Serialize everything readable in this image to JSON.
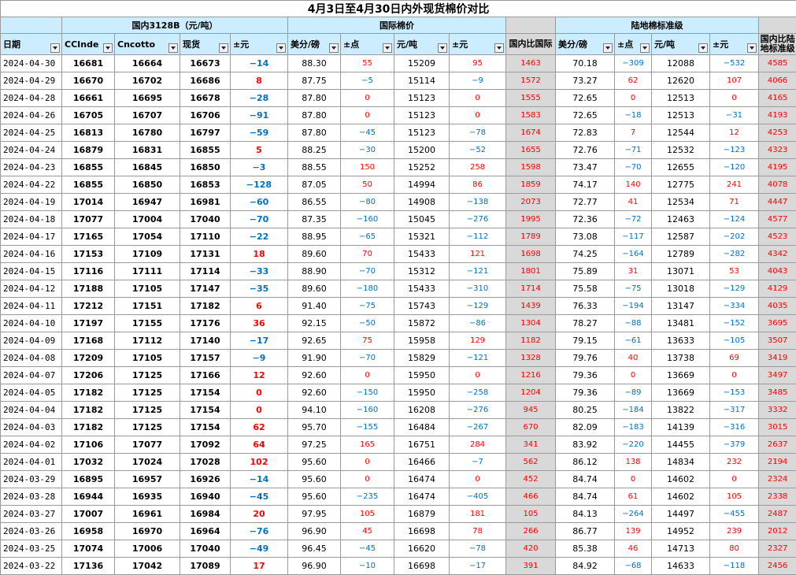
{
  "title": "4月3日至4月30日内外现货棉价对比",
  "groups": {
    "domestic": "国内3128B（元/吨）",
    "intl": "国际棉价",
    "local": "陆地棉标准级"
  },
  "headers": [
    "日期",
    "CCInde",
    "Cncotto",
    "现货",
    "±元",
    "美分/磅",
    "±点",
    "元/吨",
    "±元",
    "国内比国际",
    "美分/磅",
    "±点",
    "元/吨",
    "±元",
    "国内比陆地标准级"
  ],
  "colors": {
    "positive": "#ff0000",
    "negative": "#0070c0",
    "header_bg": "#ccecff",
    "gray_bg": "#d9d9d9"
  },
  "rows": [
    [
      "2024-04-30",
      "16681",
      "16664",
      "16673",
      "−14",
      "88.30",
      "55",
      "15209",
      "95",
      "1463",
      "70.18",
      "−309",
      "12088",
      "−532",
      "4585"
    ],
    [
      "2024-04-29",
      "16670",
      "16702",
      "16686",
      "8",
      "87.75",
      "−5",
      "15114",
      "−9",
      "1572",
      "73.27",
      "62",
      "12620",
      "107",
      "4066"
    ],
    [
      "2024-04-28",
      "16661",
      "16695",
      "16678",
      "−28",
      "87.80",
      "0",
      "15123",
      "0",
      "1555",
      "72.65",
      "0",
      "12513",
      "0",
      "4165"
    ],
    [
      "2024-04-26",
      "16705",
      "16707",
      "16706",
      "−91",
      "87.80",
      "0",
      "15123",
      "0",
      "1583",
      "72.65",
      "−18",
      "12513",
      "−31",
      "4193"
    ],
    [
      "2024-04-25",
      "16813",
      "16780",
      "16797",
      "−59",
      "87.80",
      "−45",
      "15123",
      "−78",
      "1674",
      "72.83",
      "7",
      "12544",
      "12",
      "4253"
    ],
    [
      "2024-04-24",
      "16879",
      "16831",
      "16855",
      "5",
      "88.25",
      "−30",
      "15200",
      "−52",
      "1655",
      "72.76",
      "−71",
      "12532",
      "−123",
      "4323"
    ],
    [
      "2024-04-23",
      "16855",
      "16845",
      "16850",
      "−3",
      "88.55",
      "150",
      "15252",
      "258",
      "1598",
      "73.47",
      "−70",
      "12655",
      "−120",
      "4195"
    ],
    [
      "2024-04-22",
      "16855",
      "16850",
      "16853",
      "−128",
      "87.05",
      "50",
      "14994",
      "86",
      "1859",
      "74.17",
      "140",
      "12775",
      "241",
      "4078"
    ],
    [
      "2024-04-19",
      "17014",
      "16947",
      "16981",
      "−60",
      "86.55",
      "−80",
      "14908",
      "−138",
      "2073",
      "72.77",
      "41",
      "12534",
      "71",
      "4447"
    ],
    [
      "2024-04-18",
      "17077",
      "17004",
      "17040",
      "−70",
      "87.35",
      "−160",
      "15045",
      "−276",
      "1995",
      "72.36",
      "−72",
      "12463",
      "−124",
      "4577"
    ],
    [
      "2024-04-17",
      "17165",
      "17054",
      "17110",
      "−22",
      "88.95",
      "−65",
      "15321",
      "−112",
      "1789",
      "73.08",
      "−117",
      "12587",
      "−202",
      "4523"
    ],
    [
      "2024-04-16",
      "17153",
      "17109",
      "17131",
      "18",
      "89.60",
      "70",
      "15433",
      "121",
      "1698",
      "74.25",
      "−164",
      "12789",
      "−282",
      "4342"
    ],
    [
      "2024-04-15",
      "17116",
      "17111",
      "17114",
      "−33",
      "88.90",
      "−70",
      "15312",
      "−121",
      "1801",
      "75.89",
      "31",
      "13071",
      "53",
      "4043"
    ],
    [
      "2024-04-12",
      "17188",
      "17105",
      "17147",
      "−35",
      "89.60",
      "−180",
      "15433",
      "−310",
      "1714",
      "75.58",
      "−75",
      "13018",
      "−129",
      "4129"
    ],
    [
      "2024-04-11",
      "17212",
      "17151",
      "17182",
      "6",
      "91.40",
      "−75",
      "15743",
      "−129",
      "1439",
      "76.33",
      "−194",
      "13147",
      "−334",
      "4035"
    ],
    [
      "2024-04-10",
      "17197",
      "17155",
      "17176",
      "36",
      "92.15",
      "−50",
      "15872",
      "−86",
      "1304",
      "78.27",
      "−88",
      "13481",
      "−152",
      "3695"
    ],
    [
      "2024-04-09",
      "17168",
      "17112",
      "17140",
      "−17",
      "92.65",
      "75",
      "15958",
      "129",
      "1182",
      "79.15",
      "−61",
      "13633",
      "−105",
      "3507"
    ],
    [
      "2024-04-08",
      "17209",
      "17105",
      "17157",
      "−9",
      "91.90",
      "−70",
      "15829",
      "−121",
      "1328",
      "79.76",
      "40",
      "13738",
      "69",
      "3419"
    ],
    [
      "2024-04-07",
      "17206",
      "17125",
      "17166",
      "12",
      "92.60",
      "0",
      "15950",
      "0",
      "1216",
      "79.36",
      "0",
      "13669",
      "0",
      "3497"
    ],
    [
      "2024-04-05",
      "17182",
      "17125",
      "17154",
      "0",
      "92.60",
      "−150",
      "15950",
      "−258",
      "1204",
      "79.36",
      "−89",
      "13669",
      "−153",
      "3485"
    ],
    [
      "2024-04-04",
      "17182",
      "17125",
      "17154",
      "0",
      "94.10",
      "−160",
      "16208",
      "−276",
      "945",
      "80.25",
      "−184",
      "13822",
      "−317",
      "3332"
    ],
    [
      "2024-04-03",
      "17182",
      "17125",
      "17154",
      "62",
      "95.70",
      "−155",
      "16484",
      "−267",
      "670",
      "82.09",
      "−183",
      "14139",
      "−316",
      "3015"
    ],
    [
      "2024-04-02",
      "17106",
      "17077",
      "17092",
      "64",
      "97.25",
      "165",
      "16751",
      "284",
      "341",
      "83.92",
      "−220",
      "14455",
      "−379",
      "2637"
    ],
    [
      "2024-04-01",
      "17032",
      "17024",
      "17028",
      "102",
      "95.60",
      "0",
      "16466",
      "−7",
      "562",
      "86.12",
      "138",
      "14834",
      "232",
      "2194"
    ],
    [
      "2024-03-29",
      "16895",
      "16957",
      "16926",
      "−14",
      "95.60",
      "0",
      "16474",
      "0",
      "452",
      "84.74",
      "0",
      "14602",
      "0",
      "2324"
    ],
    [
      "2024-03-28",
      "16944",
      "16935",
      "16940",
      "−45",
      "95.60",
      "−235",
      "16474",
      "−405",
      "466",
      "84.74",
      "61",
      "14602",
      "105",
      "2338"
    ],
    [
      "2024-03-27",
      "17007",
      "16961",
      "16984",
      "20",
      "97.95",
      "105",
      "16879",
      "181",
      "105",
      "84.13",
      "−264",
      "14497",
      "−455",
      "2487"
    ],
    [
      "2024-03-26",
      "16958",
      "16970",
      "16964",
      "−76",
      "96.90",
      "45",
      "16698",
      "78",
      "266",
      "86.77",
      "139",
      "14952",
      "239",
      "2012"
    ],
    [
      "2024-03-25",
      "17074",
      "17006",
      "17040",
      "−49",
      "96.45",
      "−45",
      "16620",
      "−78",
      "420",
      "85.38",
      "46",
      "14713",
      "80",
      "2327"
    ],
    [
      "2024-03-22",
      "17136",
      "17042",
      "17089",
      "17",
      "96.90",
      "−10",
      "16698",
      "−17",
      "391",
      "84.92",
      "−68",
      "14633",
      "−118",
      "2456"
    ]
  ]
}
